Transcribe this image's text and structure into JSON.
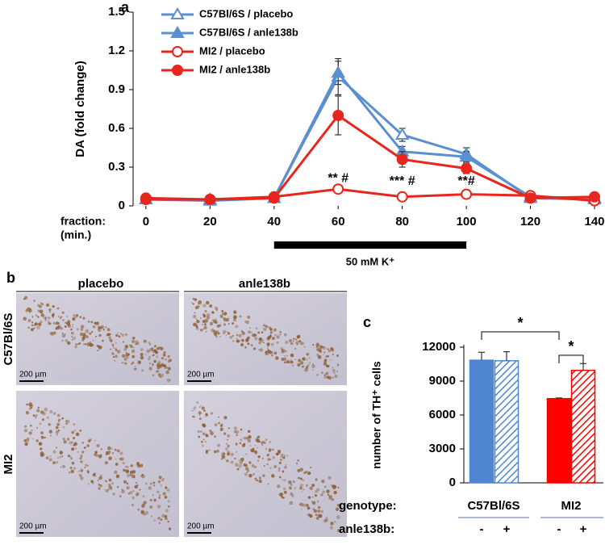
{
  "chart_data": [
    {
      "type": "line",
      "panel": "a",
      "ylabel": "DA (fold change)",
      "xlabel": [
        "fraction:",
        "(min.)"
      ],
      "x": [
        0,
        20,
        40,
        60,
        80,
        100,
        120,
        140
      ],
      "xlim": [
        -4,
        140
      ],
      "xticks": [
        0,
        20,
        40,
        60,
        80,
        100,
        120,
        140
      ],
      "ylim": [
        0,
        1.5
      ],
      "yticks": [
        0,
        0.3,
        0.6,
        0.9,
        1.2,
        1.5
      ],
      "legend": "top-left",
      "series": [
        {
          "name": "C57Bl/6S / placebo",
          "color": "#5b8fd0",
          "marker": "triangle",
          "filled": false,
          "values": [
            0.05,
            0.04,
            0.06,
            1.0,
            0.55,
            0.4,
            0.06,
            0.05
          ],
          "errors": [
            null,
            null,
            null,
            0.14,
            0.05,
            0.05,
            null,
            null
          ]
        },
        {
          "name": "C57Bl/6S / anle138b",
          "color": "#5b8fd0",
          "marker": "triangle",
          "filled": true,
          "values": [
            0.05,
            0.05,
            0.06,
            1.03,
            0.42,
            0.38,
            0.07,
            0.06
          ],
          "errors": [
            null,
            null,
            null,
            0.09,
            0.04,
            0.04,
            null,
            null
          ]
        },
        {
          "name": "MI2 / placebo",
          "color": "#e8261e",
          "marker": "circle",
          "filled": false,
          "values": [
            0.05,
            0.05,
            0.07,
            0.13,
            0.07,
            0.09,
            0.08,
            0.04
          ],
          "errors": [
            null,
            null,
            null,
            null,
            null,
            null,
            null,
            null
          ]
        },
        {
          "name": "MI2 / anle138b",
          "color": "#e8261e",
          "marker": "circle",
          "filled": true,
          "values": [
            0.06,
            0.05,
            0.06,
            0.7,
            0.36,
            0.29,
            0.06,
            0.07
          ],
          "errors": [
            null,
            null,
            null,
            0.15,
            0.06,
            0.04,
            null,
            null
          ]
        }
      ],
      "annotations": [
        {
          "text": "** #",
          "x": 60,
          "y": 0.21
        },
        {
          "text": "*** #",
          "x": 80,
          "y": 0.19
        },
        {
          "text": "**#",
          "x": 100,
          "y": 0.19
        }
      ],
      "stimulus": {
        "label": "50 mM K⁺",
        "x": [
          40,
          100
        ]
      }
    },
    {
      "type": "bar",
      "panel": "c",
      "ylabel": "number of TH⁺ cells",
      "categories": [
        "-",
        "+",
        "-",
        "+"
      ],
      "group_labels": [
        "C57Bl/6S",
        "MI2"
      ],
      "row_labels": [
        "genotype:",
        "anle138b:"
      ],
      "values": [
        10850,
        10800,
        7450,
        9950
      ],
      "errors": [
        700,
        800,
        60,
        600
      ],
      "colors": [
        "#4f86cf",
        "#4f86cf",
        "#ff0000",
        "#ff0000"
      ],
      "hatched": [
        false,
        true,
        false,
        true
      ],
      "ylim": [
        0,
        12000
      ],
      "yticks": [
        0,
        3000,
        6000,
        9000,
        12000
      ],
      "significance": [
        {
          "text": "*",
          "from": 0,
          "to": 2
        },
        {
          "text": "*",
          "from": 2,
          "to": 3
        }
      ]
    }
  ],
  "micrographs": {
    "panel": "b",
    "columns": [
      "placebo",
      "anle138b"
    ],
    "rows": [
      "C57Bl/6S",
      "MI2"
    ],
    "scale_bar": "200 µm"
  }
}
